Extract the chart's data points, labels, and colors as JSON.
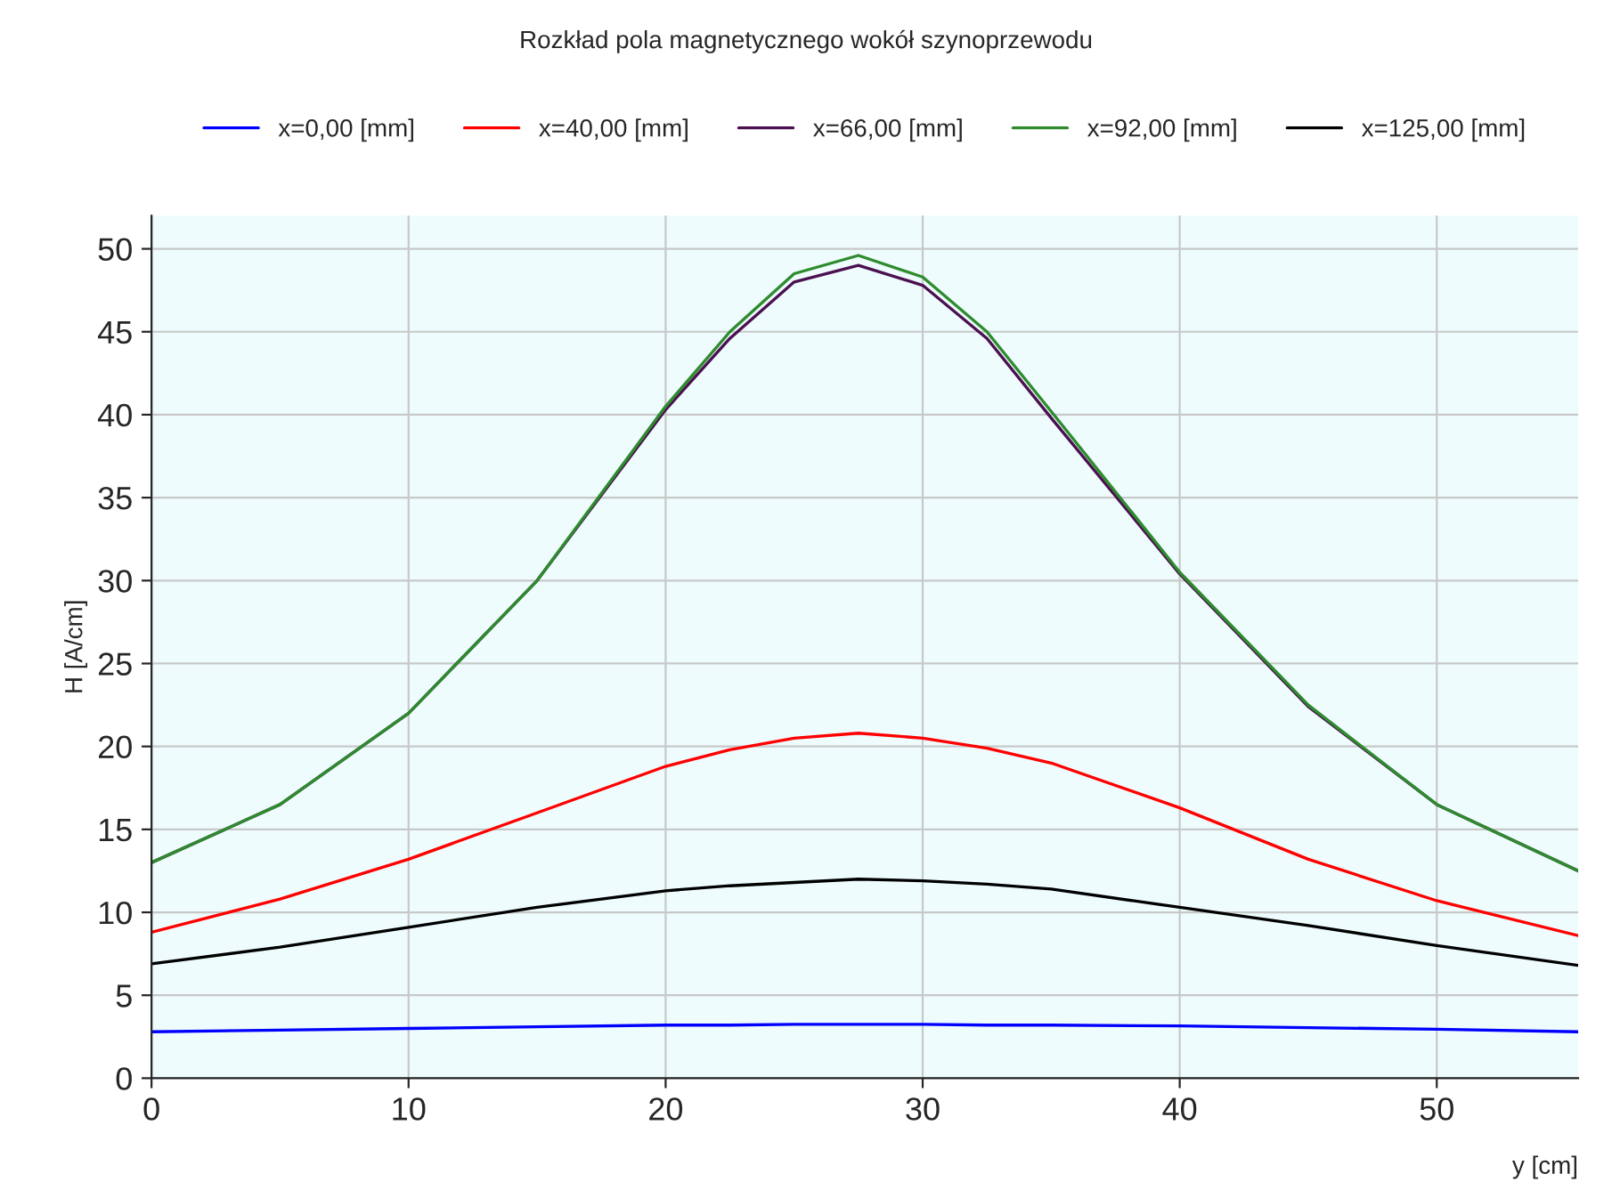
{
  "chart_data": {
    "type": "line",
    "title": "Rozkład pola magnetycznego wokół szynoprzewodu",
    "xlabel": "y [cm]",
    "ylabel": "H [A/cm]",
    "x": [
      0,
      5,
      10,
      15,
      20,
      22.5,
      25,
      27.5,
      30,
      32.5,
      35,
      40,
      45,
      50,
      55.5
    ],
    "series": [
      {
        "name": "x=0,00 [mm]",
        "color": "#0000ff",
        "values": [
          2.8,
          2.9,
          3.0,
          3.1,
          3.2,
          3.2,
          3.25,
          3.25,
          3.25,
          3.2,
          3.2,
          3.15,
          3.05,
          2.95,
          2.8
        ]
      },
      {
        "name": "x=40,00 [mm]",
        "color": "#ff0000",
        "values": [
          8.8,
          10.8,
          13.2,
          16,
          18.8,
          19.8,
          20.5,
          20.8,
          20.5,
          19.9,
          19,
          16.3,
          13.2,
          10.7,
          8.6
        ]
      },
      {
        "name": "x=66,00 [mm]",
        "color": "#4b1050",
        "values": [
          13,
          16.5,
          22,
          30,
          40.3,
          44.6,
          48,
          49,
          47.8,
          44.6,
          39.8,
          30.4,
          22.4,
          16.5,
          12.5
        ]
      },
      {
        "name": "x=92,00 [mm]",
        "color": "#2e8b2e",
        "values": [
          13,
          16.5,
          22,
          30,
          40.5,
          45,
          48.5,
          49.6,
          48.3,
          45,
          40.2,
          30.5,
          22.5,
          16.5,
          12.5
        ]
      },
      {
        "name": "x=125,00 [mm]",
        "color": "#000000",
        "values": [
          6.9,
          7.9,
          9.1,
          10.3,
          11.3,
          11.6,
          11.8,
          12,
          11.9,
          11.7,
          11.4,
          10.3,
          9.2,
          8,
          6.8
        ]
      }
    ],
    "xlim": [
      0,
      55.5
    ],
    "ylim": [
      0,
      52
    ],
    "xticks": [
      0,
      10,
      20,
      30,
      40,
      50
    ],
    "yticks": [
      0,
      5,
      10,
      15,
      20,
      25,
      30,
      35,
      40,
      45,
      50
    ],
    "grid": true,
    "legend": "top",
    "line_style": "solid",
    "marker": "none"
  }
}
